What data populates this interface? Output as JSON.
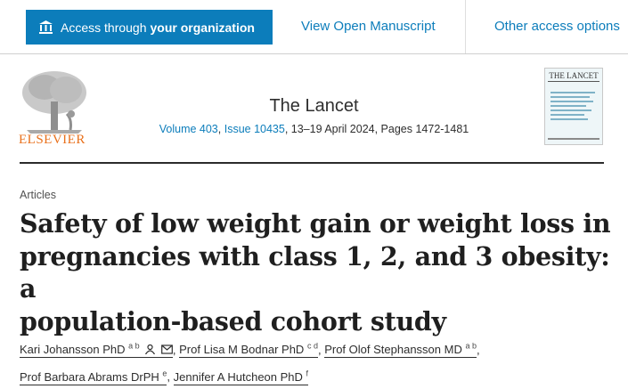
{
  "access": {
    "org_prefix": "Access through",
    "org_bold": "your organization",
    "manuscript": "View Open Manuscript",
    "other": "Other access options"
  },
  "publisher": {
    "logo_text": "ELSEVIER"
  },
  "journal": {
    "title": "The Lancet",
    "volume": "Volume 403",
    "issue": "Issue 10435",
    "details": ", 13–19 April 2024, Pages 1472-1481",
    "cover_title": "THE LANCET"
  },
  "article": {
    "section": "Articles",
    "title_lines": [
      "Safety of low weight gain or weight loss in",
      "pregnancies with class 1, 2, and 3 obesity: a",
      "population-based cohort study"
    ]
  },
  "authors": [
    {
      "name": "Kari Johansson PhD",
      "sup": "a b"
    },
    {
      "name": "Prof Lisa M Bodnar PhD",
      "sup": "c d"
    },
    {
      "name": "Prof Olof Stephansson MD",
      "sup": "a b"
    },
    {
      "name": "Prof Barbara Abrams DrPH",
      "sup": "e"
    },
    {
      "name": "Jennifer A Hutcheon PhD",
      "sup": "f"
    }
  ],
  "colors": {
    "accent": "#0c7dbb",
    "elsevier_orange": "#e9711c",
    "text": "#1f1f1f"
  },
  "icons": [
    "institution-icon",
    "person-icon",
    "mail-icon"
  ]
}
